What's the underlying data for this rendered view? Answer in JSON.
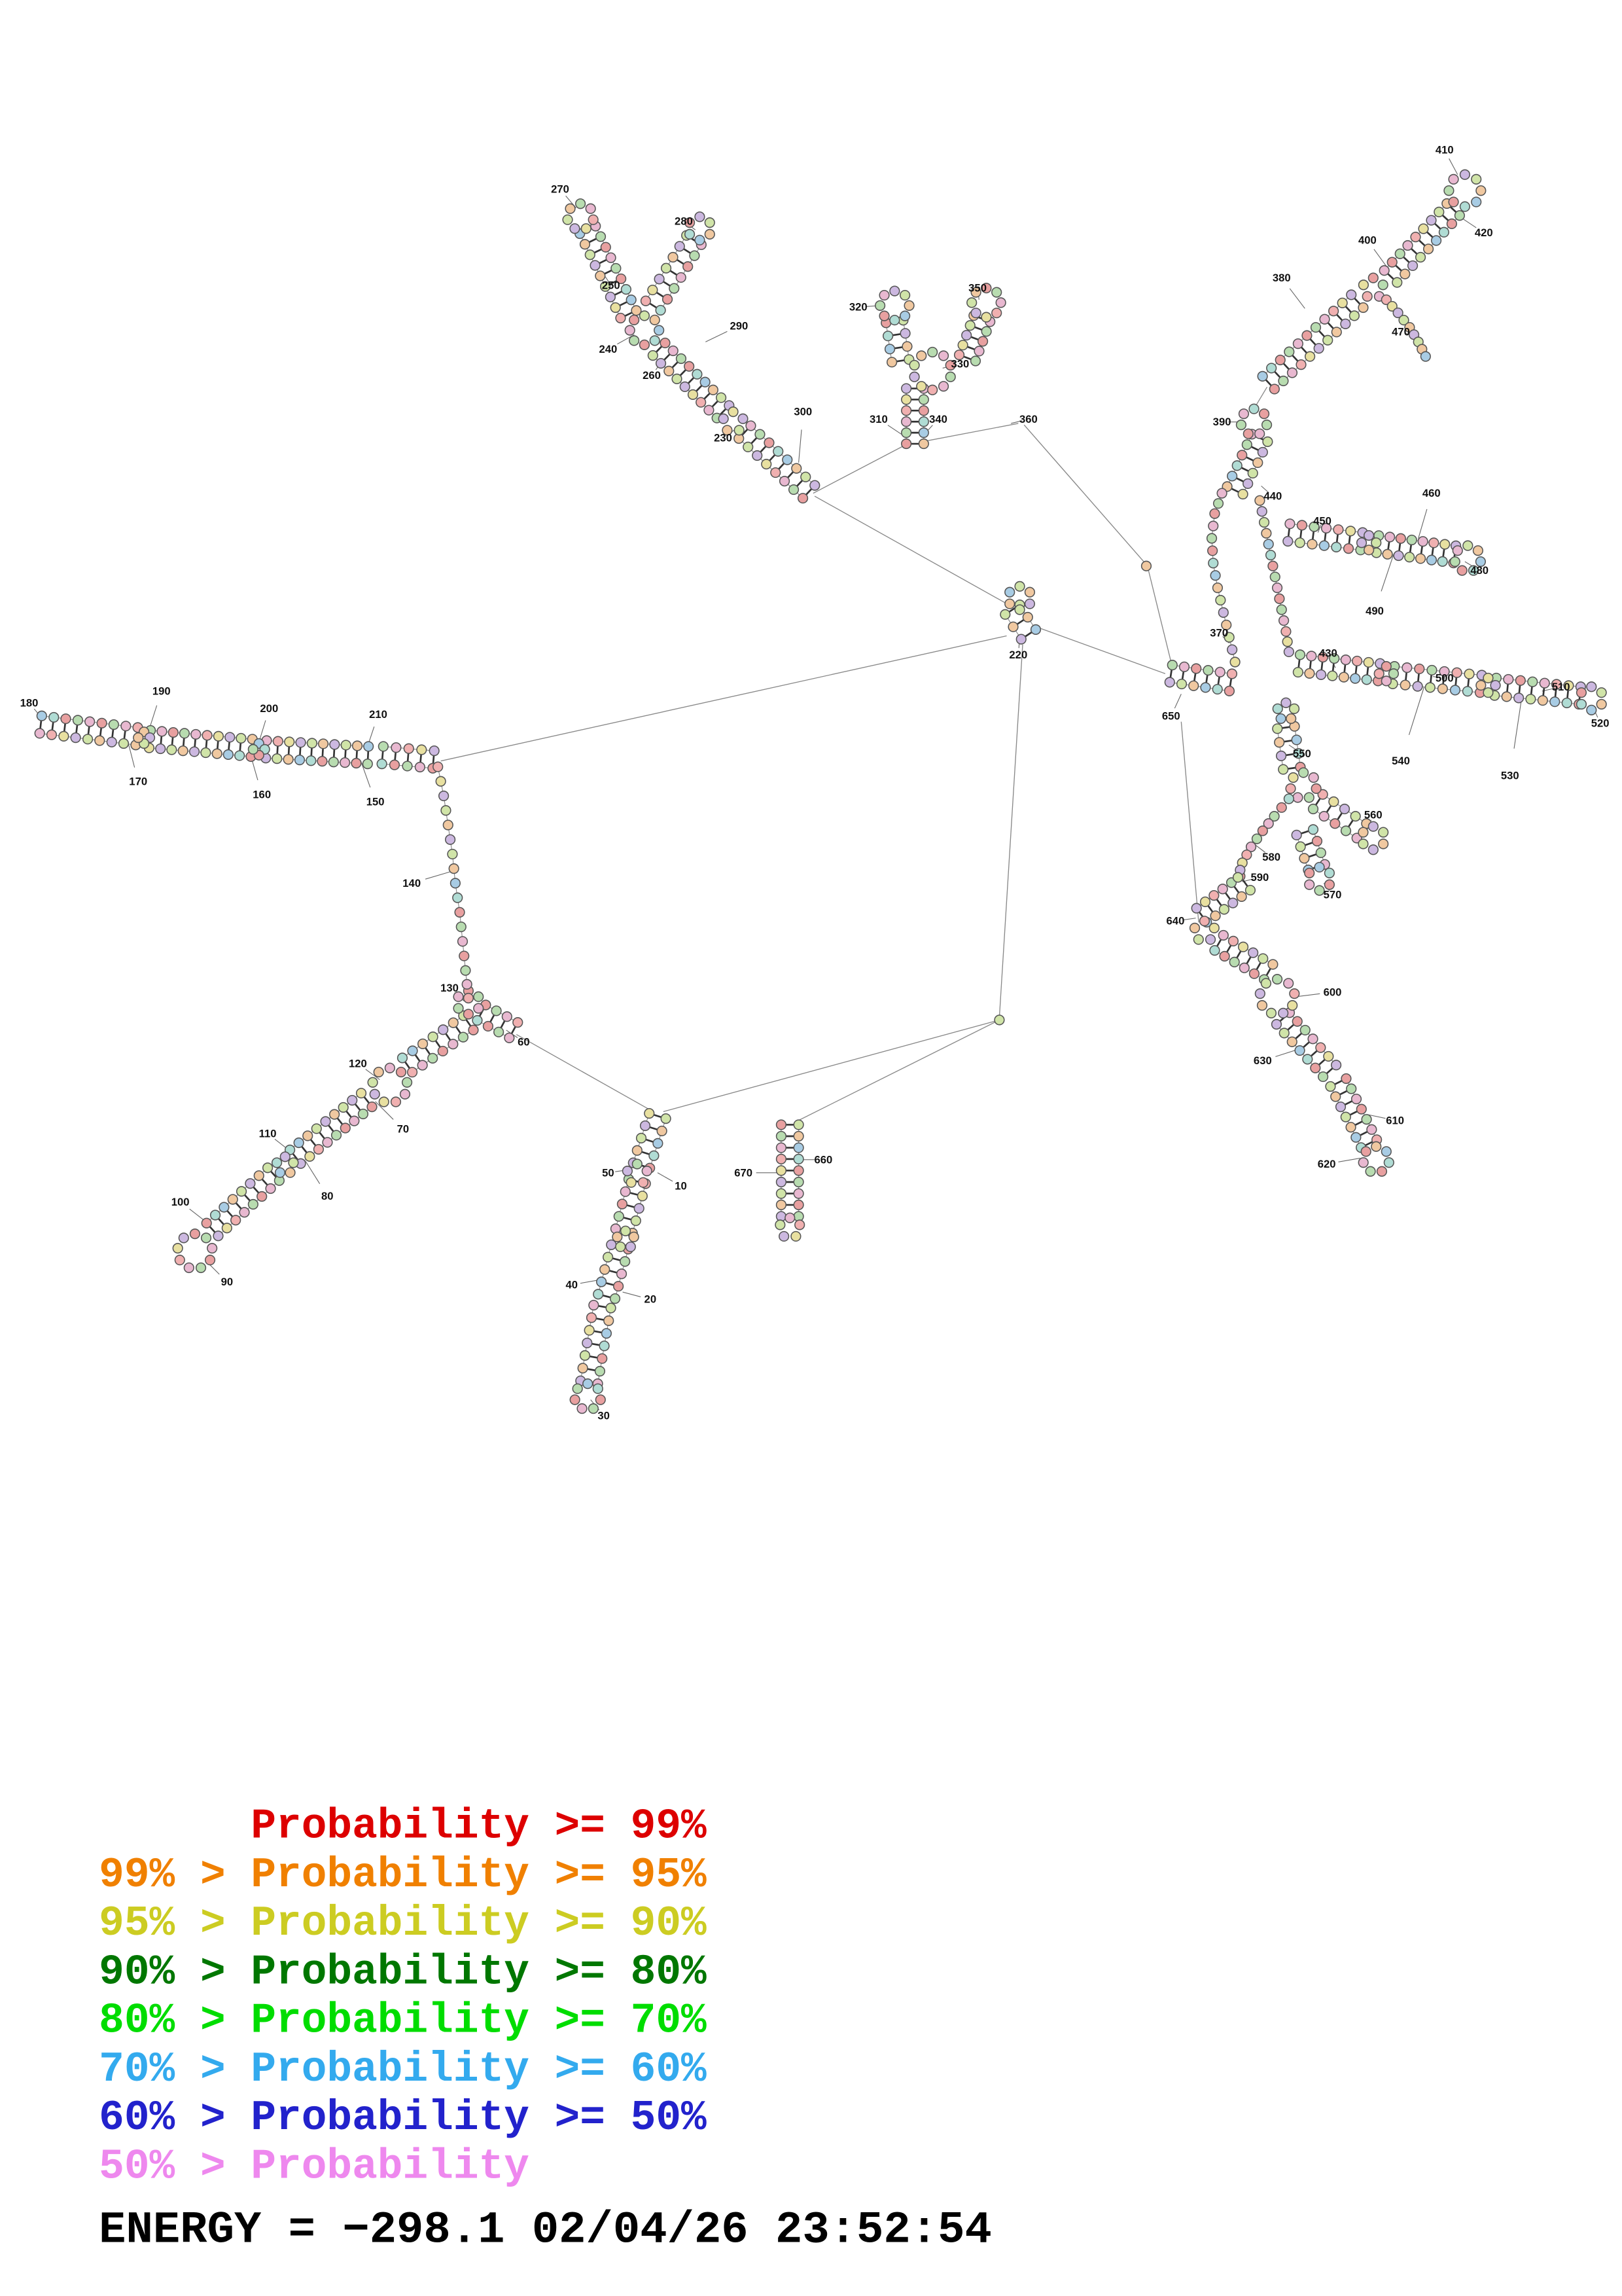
{
  "legend": {
    "lines": [
      {
        "text": "      Probability >= 99%",
        "color": "#dd0000"
      },
      {
        "text": "99% > Probability >= 95%",
        "color": "#f08000"
      },
      {
        "text": "95% > Probability >= 90%",
        "color": "#cccc22"
      },
      {
        "text": "90% > Probability >= 80%",
        "color": "#007700"
      },
      {
        "text": "80% > Probability >= 70%",
        "color": "#00dd00"
      },
      {
        "text": "70% > Probability >= 60%",
        "color": "#33aaee"
      },
      {
        "text": "60% > Probability >= 50%",
        "color": "#2222cc"
      },
      {
        "text": "50% > Probability",
        "color": "#ee88ee"
      }
    ]
  },
  "footer": {
    "energy_text": "ENERGY = −298.1  02/04/26 23:52:54"
  },
  "palette": [
    "#e8a0a0",
    "#f0c8a0",
    "#e8e0a0",
    "#b8dcb0",
    "#a8cce4",
    "#ccb8e0",
    "#e8b8d0",
    "#b0dcd4",
    "#d0e4a8",
    "#f0b0b0"
  ],
  "structure": {
    "helices": [
      [
        556,
        338,
        512,
        297
      ],
      [
        497,
        283,
        453,
        240
      ],
      [
        432,
        216,
        404,
        158
      ],
      [
        449,
        210,
        477,
        165
      ],
      [
        629,
        305,
        629,
        267
      ],
      [
        619,
        248,
        615,
        221
      ],
      [
        665,
        246,
        675,
        219
      ],
      [
        805,
        463,
        846,
        469
      ],
      [
        849,
        337,
        866,
        301
      ],
      [
        872,
        263,
        933,
        207
      ],
      [
        956,
        190,
        999,
        144
      ],
      [
        886,
        366,
        936,
        372
      ],
      [
        947,
        374,
        1000,
        381
      ],
      [
        893,
        456,
        948,
        462
      ],
      [
        958,
        464,
        1018,
        470
      ],
      [
        1028,
        472,
        1086,
        478
      ],
      [
        884,
        500,
        888,
        528
      ],
      [
        906,
        551,
        936,
        571
      ],
      [
        897,
        572,
        905,
        596
      ],
      [
        856,
        607,
        826,
        629
      ],
      [
        838,
        648,
        872,
        668
      ],
      [
        882,
        700,
        914,
        736
      ],
      [
        920,
        744,
        941,
        786
      ],
      [
        452,
        767,
        441,
        801
      ],
      [
        438,
        812,
        429,
        846
      ],
      [
        426,
        857,
        417,
        891
      ],
      [
        414,
        898,
        405,
        950
      ],
      [
        543,
        773,
        543,
        836
      ],
      [
        28,
        498,
        94,
        506
      ],
      [
        103,
        508,
        173,
        514
      ],
      [
        183,
        515,
        253,
        519
      ],
      [
        263,
        519,
        298,
        522
      ],
      [
        322,
        703,
        280,
        732
      ],
      [
        252,
        756,
        203,
        795
      ],
      [
        188,
        807,
        146,
        845
      ],
      [
        696,
        419,
        707,
        436
      ],
      [
        331,
        696,
        353,
        708
      ]
    ],
    "loops": [
      [
        504,
        290,
        7
      ],
      [
        443,
        227,
        10
      ],
      [
        399,
        149,
        9
      ],
      [
        481,
        157,
        8
      ],
      [
        641,
        255,
        13
      ],
      [
        615,
        210,
        10
      ],
      [
        678,
        208,
        10
      ],
      [
        1007,
        131,
        11
      ],
      [
        944,
        198,
        7
      ],
      [
        941,
        373,
        5
      ],
      [
        1009,
        384,
        9
      ],
      [
        953,
        463,
        5
      ],
      [
        1023,
        471,
        5
      ],
      [
        1094,
        480,
        8
      ],
      [
        896,
        540,
        9
      ],
      [
        944,
        576,
        8
      ],
      [
        907,
        604,
        8
      ],
      [
        878,
        685,
        12
      ],
      [
        946,
        797,
        9
      ],
      [
        438,
        807,
        7
      ],
      [
        430,
        852,
        6
      ],
      [
        404,
        960,
        9
      ],
      [
        543,
        844,
        7
      ],
      [
        99,
        507,
        4
      ],
      [
        178,
        515,
        4
      ],
      [
        268,
        746,
        12
      ],
      [
        196,
        801,
        6
      ],
      [
        134,
        860,
        12
      ],
      [
        701,
        411,
        8
      ],
      [
        862,
        290,
        9
      ],
      [
        828,
        640,
        7
      ],
      [
        884,
        489,
        6
      ],
      [
        322,
        689,
        8
      ]
    ],
    "chains": [
      [
        [
          301,
          527
        ],
        [
          305,
          547
        ],
        [
          308,
          567
        ],
        [
          311,
          587
        ],
        [
          313,
          607
        ],
        [
          316,
          627
        ],
        [
          318,
          647
        ],
        [
          320,
          667
        ],
        [
          322,
          686
        ]
      ],
      [
        [
          849,
          455
        ],
        [
          845,
          438
        ],
        [
          841,
          421
        ],
        [
          837,
          404
        ],
        [
          834,
          387
        ],
        [
          833,
          370
        ],
        [
          835,
          353
        ],
        [
          840,
          339
        ]
      ],
      [
        [
          953,
          206
        ],
        [
          961,
          215
        ],
        [
          969,
          225
        ],
        [
          975,
          235
        ],
        [
          980,
          245
        ]
      ],
      [
        [
          886,
          549
        ],
        [
          876,
          561
        ],
        [
          868,
          571
        ],
        [
          860,
          582
        ],
        [
          854,
          593
        ],
        [
          851,
          603
        ]
      ],
      [
        [
          866,
          344
        ],
        [
          869,
          359
        ],
        [
          872,
          374
        ],
        [
          875,
          389
        ],
        [
          878,
          404
        ],
        [
          881,
          419
        ],
        [
          884,
          434
        ],
        [
          886,
          448
        ]
      ]
    ],
    "connectors": [
      [
        560,
        341,
        694,
        416
      ],
      [
        692,
        437,
        303,
        523
      ],
      [
        703,
        443,
        687,
        699
      ],
      [
        687,
        701,
        547,
        771
      ],
      [
        687,
        701,
        456,
        764
      ],
      [
        355,
        711,
        449,
        764
      ],
      [
        559,
        339,
        622,
        306
      ],
      [
        637,
        303,
        700,
        291
      ],
      [
        704,
        292,
        788,
        388
      ],
      [
        789,
        390,
        806,
        459
      ],
      [
        710,
        430,
        801,
        463
      ],
      [
        824,
        634,
        812,
        496
      ],
      [
        862,
        281,
        871,
        266
      ]
    ],
    "dots": [
      [
        687,
        701
      ],
      [
        788,
        389
      ]
    ],
    "labels": [
      [
        "10",
        468,
        815,
        452,
        806
      ],
      [
        "20",
        447,
        893,
        428,
        888
      ],
      [
        "30",
        415,
        973,
        406,
        962
      ],
      [
        "40",
        393,
        883,
        410,
        880
      ],
      [
        "50",
        418,
        806,
        432,
        804
      ],
      [
        "60",
        360,
        716,
        348,
        708
      ],
      [
        "70",
        277,
        776,
        258,
        757
      ],
      [
        "80",
        225,
        822,
        210,
        798
      ],
      [
        "90",
        156,
        881,
        141,
        866
      ],
      [
        "100",
        124,
        826,
        142,
        840
      ],
      [
        "110",
        184,
        779,
        198,
        790
      ],
      [
        "120",
        246,
        731,
        261,
        742
      ],
      [
        "130",
        309,
        679,
        319,
        688
      ],
      [
        "140",
        283,
        607,
        310,
        599
      ],
      [
        "150",
        258,
        551,
        248,
        523
      ],
      [
        "160",
        180,
        546,
        172,
        518
      ],
      [
        "170",
        95,
        537,
        88,
        510
      ],
      [
        "180",
        20,
        483,
        30,
        495
      ],
      [
        "190",
        111,
        475,
        102,
        503
      ],
      [
        "200",
        185,
        487,
        178,
        510
      ],
      [
        "210",
        260,
        491,
        252,
        515
      ],
      [
        "220",
        700,
        450,
        701,
        437
      ],
      [
        "230",
        497,
        301,
        507,
        294
      ],
      [
        "240",
        418,
        240,
        436,
        230
      ],
      [
        "250",
        420,
        196,
        416,
        190
      ],
      [
        "260",
        448,
        258,
        456,
        247
      ],
      [
        "270",
        385,
        130,
        396,
        143
      ],
      [
        "280",
        470,
        152,
        478,
        158
      ],
      [
        "290",
        508,
        224,
        485,
        235
      ],
      [
        "300",
        552,
        283,
        549,
        318
      ],
      [
        "310",
        604,
        288,
        622,
        300
      ],
      [
        "320",
        590,
        211,
        605,
        210
      ],
      [
        "330",
        660,
        250,
        648,
        253
      ],
      [
        "340",
        645,
        288,
        634,
        300
      ],
      [
        "350",
        672,
        198,
        673,
        206
      ],
      [
        "360",
        707,
        288,
        695,
        291
      ],
      [
        "370",
        838,
        435,
        845,
        442
      ],
      [
        "380",
        881,
        191,
        897,
        212
      ],
      [
        "390",
        840,
        290,
        853,
        290
      ],
      [
        "400",
        940,
        165,
        953,
        183
      ],
      [
        "410",
        993,
        103,
        1002,
        120
      ],
      [
        "420",
        1020,
        160,
        1005,
        150
      ],
      [
        "430",
        913,
        449,
        918,
        459
      ],
      [
        "440",
        875,
        341,
        867,
        334
      ],
      [
        "450",
        909,
        358,
        906,
        366
      ],
      [
        "460",
        984,
        339,
        975,
        370
      ],
      [
        "470",
        963,
        228,
        972,
        231
      ],
      [
        "480",
        1017,
        392,
        1007,
        386
      ],
      [
        "490",
        945,
        420,
        958,
        381
      ],
      [
        "500",
        993,
        466,
        985,
        465
      ],
      [
        "510",
        1073,
        472,
        1060,
        475
      ],
      [
        "520",
        1100,
        497,
        1095,
        486
      ],
      [
        "530",
        1038,
        533,
        1046,
        480
      ],
      [
        "540",
        963,
        523,
        979,
        472
      ],
      [
        "550",
        895,
        518,
        886,
        512
      ],
      [
        "560",
        944,
        560,
        940,
        570
      ],
      [
        "570",
        916,
        615,
        910,
        607
      ],
      [
        "580",
        874,
        589,
        862,
        580
      ],
      [
        "590",
        866,
        603,
        854,
        606
      ],
      [
        "600",
        916,
        682,
        891,
        685
      ],
      [
        "610",
        959,
        770,
        940,
        766
      ],
      [
        "620",
        912,
        800,
        935,
        796
      ],
      [
        "630",
        868,
        729,
        893,
        721
      ],
      [
        "640",
        808,
        633,
        822,
        631
      ],
      [
        "650",
        805,
        492,
        812,
        477
      ],
      [
        "660",
        566,
        797,
        549,
        797
      ],
      [
        "670",
        511,
        806,
        536,
        806
      ]
    ]
  }
}
